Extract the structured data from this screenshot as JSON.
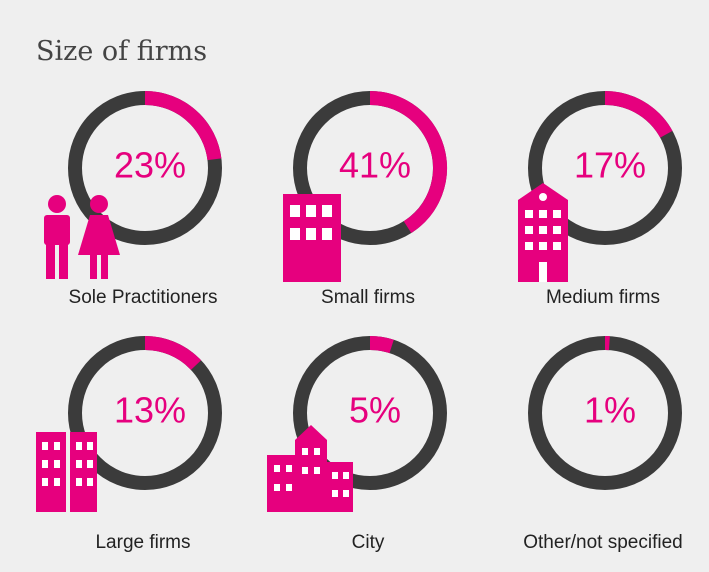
{
  "chart_data": {
    "type": "donut",
    "title": "Size of firms",
    "categories": [
      "Sole Practitioners",
      "Small firms",
      "Medium firms",
      "Large firms",
      "City",
      "Other/not specified"
    ],
    "values": [
      23,
      41,
      17,
      13,
      5,
      1
    ],
    "value_labels": [
      "23%",
      "41%",
      "17%",
      "13%",
      "5%",
      "1%"
    ],
    "color": "#e6007e",
    "ring_color": "#3b3b3b"
  }
}
